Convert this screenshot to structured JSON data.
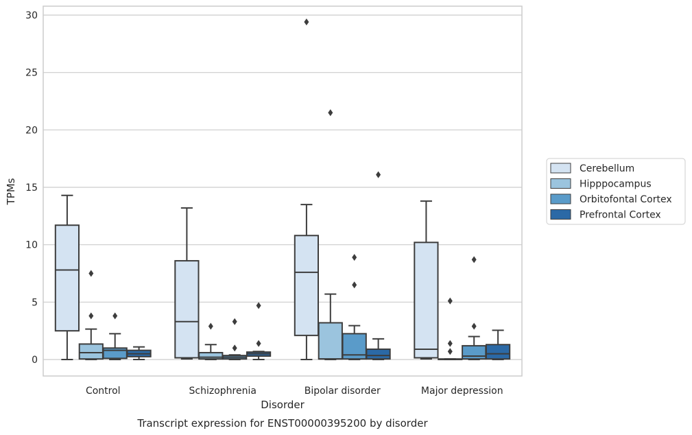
{
  "chart_data": {
    "type": "box",
    "caption": "Transcript expression for ENST00000395200 by disorder",
    "xlabel": "Disorder",
    "ylabel": "TPMs",
    "ylim": [
      -1.4,
      30.8
    ],
    "yticks": [
      0,
      5,
      10,
      15,
      20,
      25,
      30
    ],
    "grid": "horizontal",
    "legend_position": "right-center",
    "categories": [
      "Control",
      "Schizophrenia",
      "Bipolar disorder",
      "Major depression"
    ],
    "series": [
      {
        "name": "Cerebellum",
        "color": "#d4e3f2",
        "boxes": [
          {
            "whisker_low": 0,
            "q1": 2.5,
            "median": 7.8,
            "q3": 11.7,
            "whisker_high": 14.3,
            "outliers": []
          },
          {
            "whisker_low": 0.05,
            "q1": 0.15,
            "median": 3.3,
            "q3": 8.6,
            "whisker_high": 13.2,
            "outliers": []
          },
          {
            "whisker_low": 0,
            "q1": 2.1,
            "median": 7.6,
            "q3": 10.8,
            "whisker_high": 13.5,
            "outliers": [
              29.4
            ]
          },
          {
            "whisker_low": 0.05,
            "q1": 0.15,
            "median": 0.9,
            "q3": 10.2,
            "whisker_high": 13.8,
            "outliers": []
          }
        ]
      },
      {
        "name": "Hipppocampus",
        "color": "#9bc4de",
        "boxes": [
          {
            "whisker_low": 0,
            "q1": 0.05,
            "median": 0.6,
            "q3": 1.35,
            "whisker_high": 2.65,
            "outliers": [
              3.8,
              7.5
            ]
          },
          {
            "whisker_low": 0,
            "q1": 0.05,
            "median": 0.2,
            "q3": 0.6,
            "whisker_high": 1.3,
            "outliers": [
              2.9
            ]
          },
          {
            "whisker_low": 0,
            "q1": 0.05,
            "median": 0.05,
            "q3": 3.2,
            "whisker_high": 5.7,
            "outliers": [
              21.5
            ]
          },
          {
            "whisker_low": 0,
            "q1": 0.02,
            "median": 0.03,
            "q3": 0.05,
            "whisker_high": 0.05,
            "outliers": [
              0.7,
              1.4,
              5.1
            ]
          }
        ]
      },
      {
        "name": "Orbitofontal Cortex",
        "color": "#5a9bc9",
        "boxes": [
          {
            "whisker_low": 0,
            "q1": 0.1,
            "median": 0.8,
            "q3": 1.0,
            "whisker_high": 2.25,
            "outliers": [
              3.8
            ]
          },
          {
            "whisker_low": 0,
            "q1": 0.05,
            "median": 0.2,
            "q3": 0.35,
            "whisker_high": 0.4,
            "outliers": [
              1.0,
              3.3
            ]
          },
          {
            "whisker_low": 0,
            "q1": 0.05,
            "median": 0.4,
            "q3": 2.25,
            "whisker_high": 2.95,
            "outliers": [
              6.5,
              8.9
            ]
          },
          {
            "whisker_low": 0,
            "q1": 0.05,
            "median": 0.3,
            "q3": 1.2,
            "whisker_high": 2.0,
            "outliers": [
              2.9,
              8.7
            ]
          }
        ]
      },
      {
        "name": "Prefrontal Cortex",
        "color": "#2b69a6",
        "boxes": [
          {
            "whisker_low": 0,
            "q1": 0.25,
            "median": 0.5,
            "q3": 0.8,
            "whisker_high": 1.1,
            "outliers": []
          },
          {
            "whisker_low": 0,
            "q1": 0.3,
            "median": 0.5,
            "q3": 0.65,
            "whisker_high": 0.7,
            "outliers": [
              1.4,
              4.7
            ]
          },
          {
            "whisker_low": 0,
            "q1": 0.05,
            "median": 0.35,
            "q3": 0.9,
            "whisker_high": 1.8,
            "outliers": [
              16.1
            ]
          },
          {
            "whisker_low": 0,
            "q1": 0.05,
            "median": 0.5,
            "q3": 1.3,
            "whisker_high": 2.55,
            "outliers": []
          }
        ]
      }
    ]
  }
}
